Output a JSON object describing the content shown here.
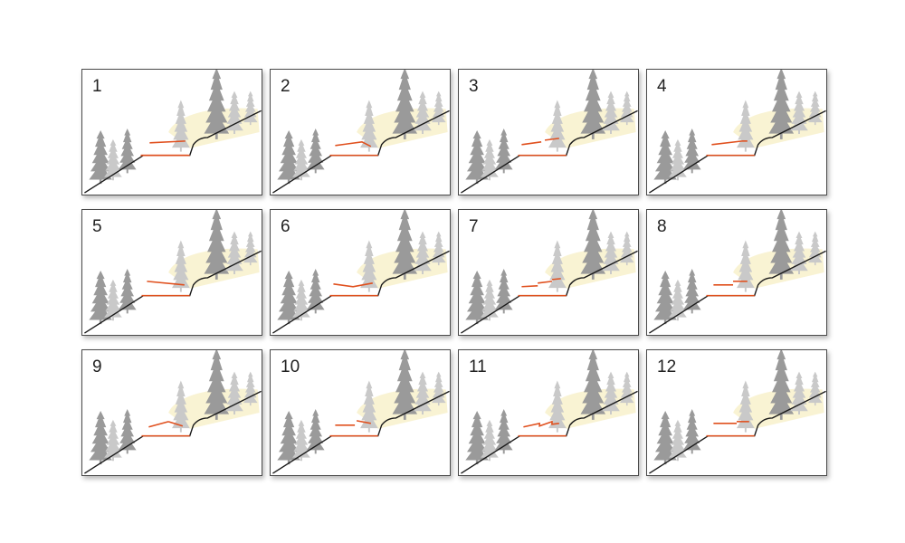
{
  "panels": [
    {
      "number": "1",
      "roof_variant": "lines-wide"
    },
    {
      "number": "2",
      "roof_variant": "peak-low"
    },
    {
      "number": "3",
      "roof_variant": "rising-steps"
    },
    {
      "number": "4",
      "roof_variant": "shed-up"
    },
    {
      "number": "5",
      "roof_variant": "shed-down"
    },
    {
      "number": "6",
      "roof_variant": "valley"
    },
    {
      "number": "7",
      "roof_variant": "three-steps"
    },
    {
      "number": "8",
      "roof_variant": "two-steps"
    },
    {
      "number": "9",
      "roof_variant": "shed-gable"
    },
    {
      "number": "10",
      "roof_variant": "split-high"
    },
    {
      "number": "11",
      "roof_variant": "sawtooth"
    },
    {
      "number": "12",
      "roof_variant": "flat-offset"
    }
  ],
  "colors": {
    "frame": "#4a4a4a",
    "ground_line": "#1a1a1a",
    "roof": "#e0501e",
    "tree_dark": "#9a9a9a",
    "tree_light": "#c9c9c9",
    "glow": "#f7eec0"
  }
}
